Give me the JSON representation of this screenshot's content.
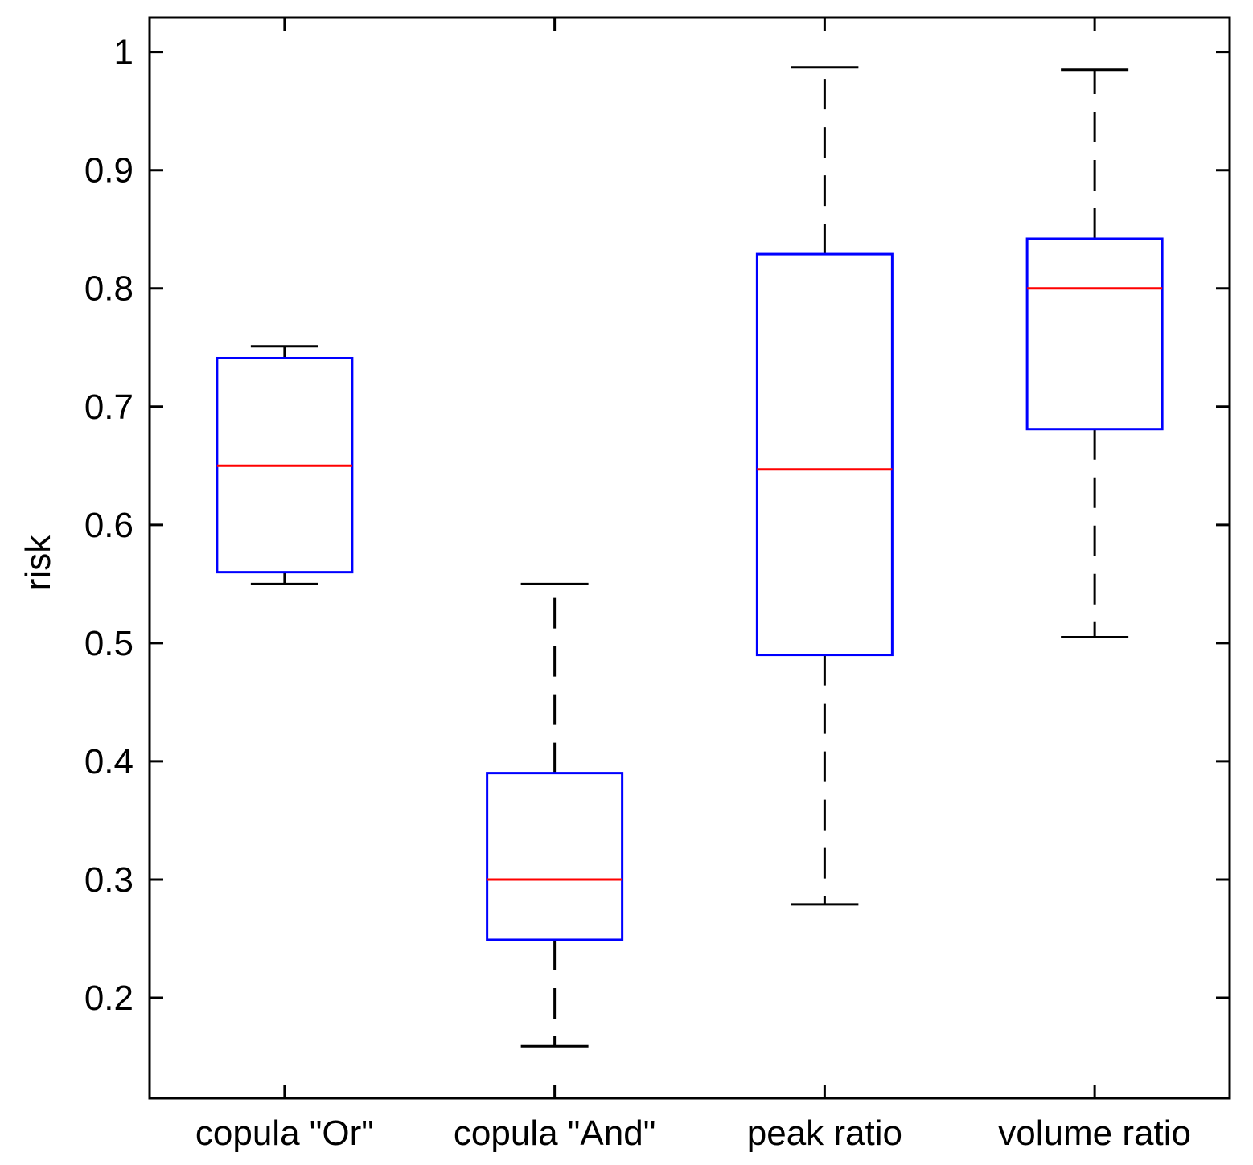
{
  "chart_data": {
    "type": "box",
    "title": "",
    "xlabel": "",
    "ylabel": "risk",
    "ylim": [
      0.115,
      1.029
    ],
    "yticks": [
      0.2,
      0.3,
      0.4,
      0.5,
      0.6,
      0.7,
      0.8,
      0.9,
      1
    ],
    "ytick_labels": [
      "0.2",
      "0.3",
      "0.4",
      "0.5",
      "0.6",
      "0.7",
      "0.8",
      "0.9",
      "1"
    ],
    "categories": [
      "copula \"Or\"",
      "copula \"And\"",
      "peak ratio",
      "volume ratio"
    ],
    "boxes": [
      {
        "name": "copula \"Or\"",
        "whisker_low": 0.55,
        "q1": 0.56,
        "median": 0.65,
        "q3": 0.741,
        "whisker_high": 0.751
      },
      {
        "name": "copula \"And\"",
        "whisker_low": 0.159,
        "q1": 0.249,
        "median": 0.3,
        "q3": 0.39,
        "whisker_high": 0.55
      },
      {
        "name": "peak ratio",
        "whisker_low": 0.279,
        "q1": 0.49,
        "median": 0.647,
        "q3": 0.829,
        "whisker_high": 0.987
      },
      {
        "name": "volume ratio",
        "whisker_low": 0.505,
        "q1": 0.681,
        "median": 0.8,
        "q3": 0.842,
        "whisker_high": 0.985
      }
    ],
    "colors": {
      "box": "#0000ff",
      "median": "#ff0000",
      "whisker": "#000000",
      "axes": "#000000"
    },
    "grid": false
  }
}
